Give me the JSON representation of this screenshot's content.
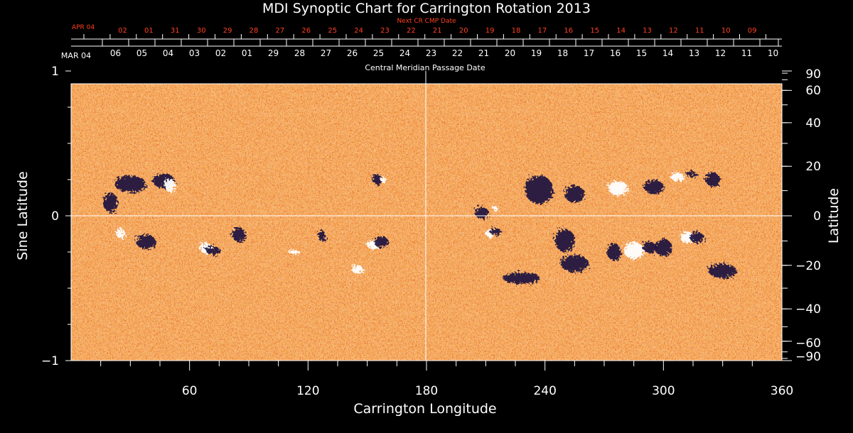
{
  "chart_data": {
    "type": "heatmap",
    "title": "MDI Synoptic Chart for Carrington Rotation 2013",
    "xlabel": "Carrington Longitude",
    "ylabel_left": "Sine Latitude",
    "ylabel_right": "Latitude",
    "xlim": [
      0,
      360
    ],
    "ylim": [
      -1,
      1
    ],
    "x_ticks": [
      60,
      120,
      180,
      240,
      300,
      360
    ],
    "y_ticks_left": [
      "1",
      "0",
      "−1"
    ],
    "y_ticks_right": [
      90,
      60,
      40,
      20,
      0,
      -20,
      -40,
      -60,
      -90
    ],
    "right_tick_labels": [
      "90",
      "60",
      "40",
      "20",
      "0",
      "−20",
      "−40",
      "−60",
      "−90"
    ],
    "top_axis_label": "Central Meridian Passage Date",
    "top_axis_start_label": "MAR 04",
    "top_axis_dates": [
      "06",
      "05",
      "04",
      "03",
      "02",
      "01",
      "29",
      "28",
      "27",
      "26",
      "25",
      "24",
      "23",
      "22",
      "21",
      "20",
      "19",
      "18",
      "17",
      "16",
      "15",
      "14",
      "13",
      "12",
      "11",
      "10"
    ],
    "next_axis_label": "Next CR CMP Date",
    "next_axis_start_label": "APR 04",
    "next_axis_dates": [
      "02",
      "01",
      "31",
      "30",
      "29",
      "28",
      "27",
      "26",
      "25",
      "24",
      "23",
      "22",
      "21",
      "20",
      "19",
      "18",
      "17",
      "16",
      "15",
      "14",
      "13",
      "12",
      "11",
      "10",
      "09"
    ],
    "crosshair": {
      "longitude": 180,
      "sine_latitude": 0
    },
    "colors": {
      "background": "#000000",
      "base": "#e8541a",
      "positive": "#ffffff",
      "negative": "#1a1450",
      "next_axis": "#ff4020",
      "axes": "#ffffff"
    }
  }
}
